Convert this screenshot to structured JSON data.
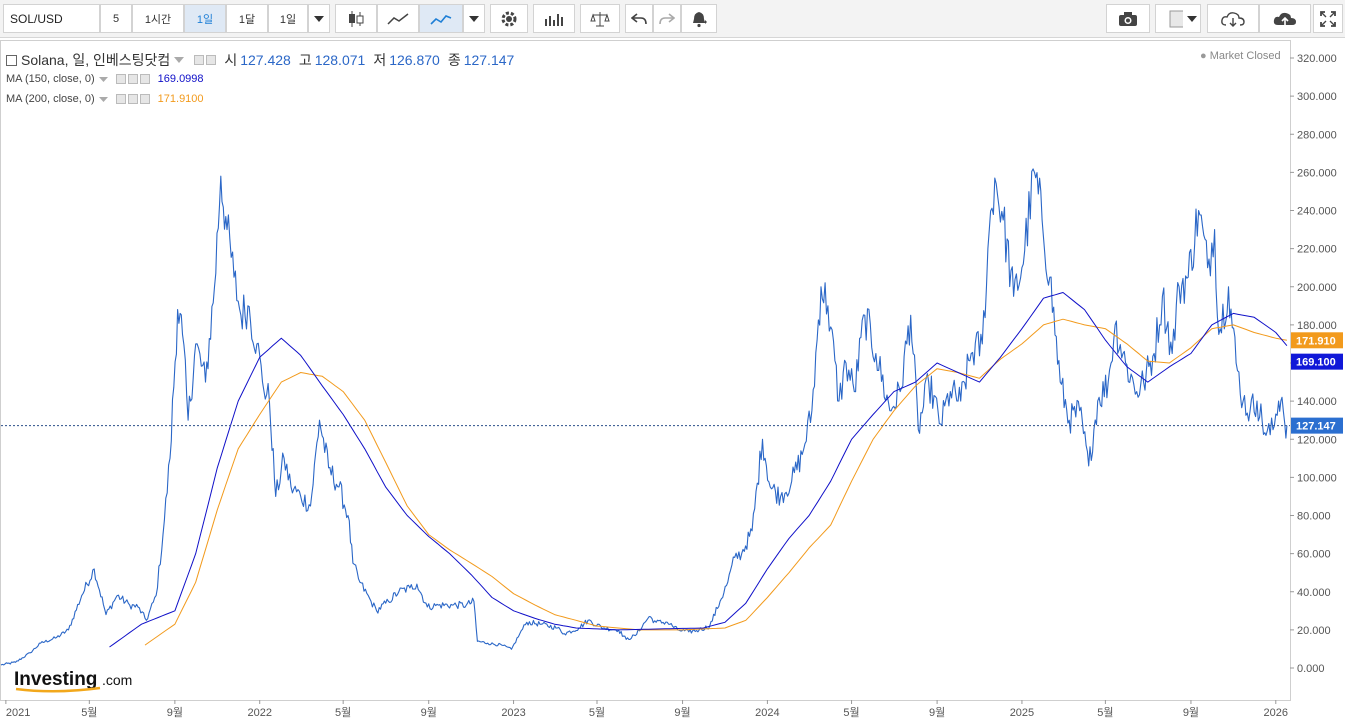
{
  "toolbar": {
    "symbol": "SOL/USD",
    "interval_value": "5",
    "btn_1h": "1시간",
    "btn_1d": "1일",
    "btn_1mo": "1달",
    "btn_period": "1일"
  },
  "legend": {
    "title": "Solana, 일, 인베스팅닷컴",
    "open_label": "시",
    "open": "127.428",
    "high_label": "고",
    "high": "128.071",
    "low_label": "저",
    "low": "126.870",
    "close_label": "종",
    "close": "127.147",
    "ma150_label": "MA (150, close, 0)",
    "ma150_value": "169.0998",
    "ma200_label": "MA (200, close, 0)",
    "ma200_value": "171.9100"
  },
  "status": {
    "market": "Market Closed"
  },
  "price_tags": {
    "ma200": "171.910",
    "ma150": "169.100",
    "last": "127.147"
  },
  "colors": {
    "price": "#2b67c7",
    "ma150": "#1010c8",
    "ma200": "#f29a1c",
    "tag_ma200": "#f29a1c",
    "tag_ma150": "#1018d8",
    "tag_last": "#2b6fd0"
  },
  "chart_data": {
    "type": "line",
    "ylim": [
      -10,
      330
    ],
    "yticks": [
      "0.000",
      "20.000",
      "40.000",
      "60.000",
      "80.000",
      "100.000",
      "120.000",
      "140.000",
      "160.000",
      "180.000",
      "200.000",
      "220.000",
      "240.000",
      "260.000",
      "280.000",
      "300.000",
      "320.000"
    ],
    "ytick_values": [
      0,
      20,
      40,
      60,
      80,
      100,
      120,
      140,
      160,
      180,
      200,
      220,
      240,
      260,
      280,
      300,
      320
    ],
    "xticks": [
      "2021",
      "5월",
      "9월",
      "2022",
      "5월",
      "9월",
      "2023",
      "5월",
      "9월",
      "2024",
      "5월",
      "9월",
      "2025",
      "5월",
      "9월",
      "2026"
    ],
    "xtick_dates": [
      "2021-01-01",
      "2021-05-01",
      "2021-09-01",
      "2022-01-01",
      "2022-05-01",
      "2022-09-01",
      "2023-01-01",
      "2023-05-01",
      "2023-09-01",
      "2024-01-01",
      "2024-05-01",
      "2024-09-01",
      "2025-01-01",
      "2025-05-01",
      "2025-09-01",
      "2026-01-01"
    ],
    "xlim": [
      "2020-12-25",
      "2026-01-20"
    ],
    "last_value": 127.147,
    "series": [
      {
        "name": "Solana",
        "points": [
          [
            "2020-12-25",
            1.6
          ],
          [
            "2021-01-15",
            3
          ],
          [
            "2021-02-05",
            8
          ],
          [
            "2021-02-20",
            13
          ],
          [
            "2021-03-15",
            16
          ],
          [
            "2021-04-01",
            20
          ],
          [
            "2021-04-20",
            38
          ],
          [
            "2021-05-08",
            52
          ],
          [
            "2021-05-25",
            28
          ],
          [
            "2021-06-10",
            38
          ],
          [
            "2021-06-28",
            33
          ],
          [
            "2021-07-10",
            32
          ],
          [
            "2021-07-22",
            25
          ],
          [
            "2021-08-05",
            38
          ],
          [
            "2021-08-15",
            70
          ],
          [
            "2021-08-25",
            110
          ],
          [
            "2021-09-05",
            188
          ],
          [
            "2021-09-12",
            175
          ],
          [
            "2021-09-20",
            130
          ],
          [
            "2021-10-01",
            170
          ],
          [
            "2021-10-15",
            150
          ],
          [
            "2021-10-28",
            200
          ],
          [
            "2021-11-06",
            258
          ],
          [
            "2021-11-15",
            230
          ],
          [
            "2021-11-25",
            205
          ],
          [
            "2021-12-05",
            185
          ],
          [
            "2021-12-15",
            190
          ],
          [
            "2021-12-28",
            170
          ],
          [
            "2022-01-05",
            150
          ],
          [
            "2022-01-15",
            140
          ],
          [
            "2022-01-24",
            90
          ],
          [
            "2022-02-05",
            110
          ],
          [
            "2022-02-15",
            95
          ],
          [
            "2022-03-01",
            90
          ],
          [
            "2022-03-15",
            85
          ],
          [
            "2022-03-28",
            130
          ],
          [
            "2022-04-10",
            105
          ],
          [
            "2022-04-25",
            95
          ],
          [
            "2022-05-08",
            80
          ],
          [
            "2022-05-15",
            55
          ],
          [
            "2022-05-25",
            45
          ],
          [
            "2022-06-10",
            35
          ],
          [
            "2022-06-18",
            30
          ],
          [
            "2022-07-05",
            35
          ],
          [
            "2022-07-20",
            40
          ],
          [
            "2022-08-05",
            42
          ],
          [
            "2022-08-15",
            44
          ],
          [
            "2022-08-30",
            32
          ],
          [
            "2022-09-15",
            33
          ],
          [
            "2022-10-05",
            33
          ],
          [
            "2022-10-25",
            33
          ],
          [
            "2022-11-05",
            35
          ],
          [
            "2022-11-10",
            14
          ],
          [
            "2022-11-25",
            13
          ],
          [
            "2022-12-15",
            12
          ],
          [
            "2022-12-29",
            9.8
          ],
          [
            "2023-01-10",
            18
          ],
          [
            "2023-01-20",
            24
          ],
          [
            "2023-02-10",
            23
          ],
          [
            "2023-03-05",
            21
          ],
          [
            "2023-03-15",
            18
          ],
          [
            "2023-04-05",
            21
          ],
          [
            "2023-04-18",
            25
          ],
          [
            "2023-05-10",
            21
          ],
          [
            "2023-06-01",
            20
          ],
          [
            "2023-06-12",
            15
          ],
          [
            "2023-06-25",
            17
          ],
          [
            "2023-07-15",
            27
          ],
          [
            "2023-07-25",
            24
          ],
          [
            "2023-08-10",
            24
          ],
          [
            "2023-08-25",
            20
          ],
          [
            "2023-09-10",
            19
          ],
          [
            "2023-09-25",
            20
          ],
          [
            "2023-10-10",
            22
          ],
          [
            "2023-10-25",
            35
          ],
          [
            "2023-11-05",
            45
          ],
          [
            "2023-11-15",
            58
          ],
          [
            "2023-11-25",
            60
          ],
          [
            "2023-12-10",
            72
          ],
          [
            "2023-12-25",
            120
          ],
          [
            "2024-01-05",
            95
          ],
          [
            "2024-01-20",
            90
          ],
          [
            "2024-02-05",
            98
          ],
          [
            "2024-02-20",
            112
          ],
          [
            "2024-03-05",
            135
          ],
          [
            "2024-03-18",
            200
          ],
          [
            "2024-03-28",
            190
          ],
          [
            "2024-04-13",
            140
          ],
          [
            "2024-04-23",
            160
          ],
          [
            "2024-05-05",
            145
          ],
          [
            "2024-05-20",
            185
          ],
          [
            "2024-06-05",
            165
          ],
          [
            "2024-06-25",
            135
          ],
          [
            "2024-07-10",
            145
          ],
          [
            "2024-07-25",
            185
          ],
          [
            "2024-08-05",
            125
          ],
          [
            "2024-08-20",
            150
          ],
          [
            "2024-09-06",
            128
          ],
          [
            "2024-09-20",
            145
          ],
          [
            "2024-10-05",
            140
          ],
          [
            "2024-10-20",
            165
          ],
          [
            "2024-11-05",
            170
          ],
          [
            "2024-11-15",
            230
          ],
          [
            "2024-11-23",
            257
          ],
          [
            "2024-12-05",
            235
          ],
          [
            "2024-12-20",
            195
          ],
          [
            "2025-01-01",
            210
          ],
          [
            "2025-01-19",
            260
          ],
          [
            "2025-01-30",
            235
          ],
          [
            "2025-02-10",
            205
          ],
          [
            "2025-02-25",
            150
          ],
          [
            "2025-03-10",
            130
          ],
          [
            "2025-03-25",
            135
          ],
          [
            "2025-04-07",
            106
          ],
          [
            "2025-04-20",
            140
          ],
          [
            "2025-05-05",
            150
          ],
          [
            "2025-05-15",
            180
          ],
          [
            "2025-05-30",
            160
          ],
          [
            "2025-06-15",
            145
          ],
          [
            "2025-06-25",
            150
          ],
          [
            "2025-07-10",
            165
          ],
          [
            "2025-07-22",
            195
          ],
          [
            "2025-08-05",
            165
          ],
          [
            "2025-08-15",
            200
          ],
          [
            "2025-08-28",
            205
          ],
          [
            "2025-09-12",
            240
          ],
          [
            "2025-09-25",
            210
          ],
          [
            "2025-10-05",
            230
          ],
          [
            "2025-10-11",
            175
          ],
          [
            "2025-10-25",
            200
          ],
          [
            "2025-11-05",
            160
          ],
          [
            "2025-11-15",
            140
          ],
          [
            "2025-11-25",
            135
          ],
          [
            "2025-12-05",
            140
          ],
          [
            "2025-12-18",
            122
          ],
          [
            "2025-12-28",
            125
          ],
          [
            "2026-01-05",
            140
          ],
          [
            "2026-01-10",
            142
          ],
          [
            "2026-01-14",
            128
          ],
          [
            "2026-01-17",
            127.147
          ]
        ]
      },
      {
        "name": "MA (150, close, 0)",
        "points": [
          [
            "2021-05-30",
            11
          ],
          [
            "2021-07-15",
            23
          ],
          [
            "2021-09-01",
            30
          ],
          [
            "2021-10-01",
            60
          ],
          [
            "2021-11-01",
            105
          ],
          [
            "2021-12-01",
            140
          ],
          [
            "2022-01-01",
            163
          ],
          [
            "2022-02-01",
            173
          ],
          [
            "2022-03-01",
            164
          ],
          [
            "2022-04-01",
            148
          ],
          [
            "2022-05-01",
            133
          ],
          [
            "2022-06-01",
            115
          ],
          [
            "2022-07-01",
            95
          ],
          [
            "2022-08-01",
            80
          ],
          [
            "2022-09-01",
            69
          ],
          [
            "2022-10-01",
            60
          ],
          [
            "2022-11-01",
            49
          ],
          [
            "2022-12-01",
            37
          ],
          [
            "2023-01-01",
            30
          ],
          [
            "2023-02-01",
            26
          ],
          [
            "2023-03-01",
            23
          ],
          [
            "2023-04-01",
            21
          ],
          [
            "2023-06-01",
            20
          ],
          [
            "2023-08-01",
            20.5
          ],
          [
            "2023-10-01",
            21
          ],
          [
            "2023-11-01",
            24
          ],
          [
            "2023-12-01",
            34
          ],
          [
            "2024-01-01",
            52
          ],
          [
            "2024-02-01",
            68
          ],
          [
            "2024-03-01",
            80
          ],
          [
            "2024-04-01",
            98
          ],
          [
            "2024-05-01",
            120
          ],
          [
            "2024-06-01",
            133
          ],
          [
            "2024-07-01",
            145
          ],
          [
            "2024-08-01",
            150
          ],
          [
            "2024-09-01",
            160
          ],
          [
            "2024-10-01",
            155
          ],
          [
            "2024-11-01",
            150
          ],
          [
            "2024-12-01",
            163
          ],
          [
            "2025-01-01",
            178
          ],
          [
            "2025-02-01",
            194
          ],
          [
            "2025-03-01",
            197
          ],
          [
            "2025-04-01",
            188
          ],
          [
            "2025-05-01",
            172
          ],
          [
            "2025-06-01",
            158
          ],
          [
            "2025-07-01",
            150
          ],
          [
            "2025-08-01",
            158
          ],
          [
            "2025-09-01",
            165
          ],
          [
            "2025-10-01",
            180
          ],
          [
            "2025-11-01",
            186
          ],
          [
            "2025-12-01",
            184
          ],
          [
            "2026-01-01",
            176
          ],
          [
            "2026-01-17",
            169.1
          ]
        ]
      },
      {
        "name": "MA (200, close, 0)",
        "points": [
          [
            "2021-07-20",
            12
          ],
          [
            "2021-09-01",
            23
          ],
          [
            "2021-10-01",
            45
          ],
          [
            "2021-11-01",
            83
          ],
          [
            "2021-12-01",
            115
          ],
          [
            "2022-01-01",
            133
          ],
          [
            "2022-02-01",
            150
          ],
          [
            "2022-03-01",
            155
          ],
          [
            "2022-04-01",
            153
          ],
          [
            "2022-05-01",
            145
          ],
          [
            "2022-06-01",
            130
          ],
          [
            "2022-07-01",
            108
          ],
          [
            "2022-08-01",
            85
          ],
          [
            "2022-09-01",
            70
          ],
          [
            "2022-10-01",
            62
          ],
          [
            "2022-11-01",
            55
          ],
          [
            "2022-12-01",
            48
          ],
          [
            "2023-01-01",
            39
          ],
          [
            "2023-02-01",
            33
          ],
          [
            "2023-03-01",
            28
          ],
          [
            "2023-04-01",
            25
          ],
          [
            "2023-05-01",
            22
          ],
          [
            "2023-07-01",
            20
          ],
          [
            "2023-09-01",
            20
          ],
          [
            "2023-11-01",
            21
          ],
          [
            "2023-12-01",
            25
          ],
          [
            "2024-01-01",
            37
          ],
          [
            "2024-02-01",
            50
          ],
          [
            "2024-03-01",
            63
          ],
          [
            "2024-04-01",
            75
          ],
          [
            "2024-05-01",
            98
          ],
          [
            "2024-06-01",
            120
          ],
          [
            "2024-07-01",
            135
          ],
          [
            "2024-08-01",
            148
          ],
          [
            "2024-09-01",
            157
          ],
          [
            "2024-10-01",
            155
          ],
          [
            "2024-11-01",
            152
          ],
          [
            "2024-12-01",
            162
          ],
          [
            "2025-01-01",
            170
          ],
          [
            "2025-02-01",
            180
          ],
          [
            "2025-03-01",
            183
          ],
          [
            "2025-04-01",
            180
          ],
          [
            "2025-05-01",
            178
          ],
          [
            "2025-06-01",
            170
          ],
          [
            "2025-07-01",
            161
          ],
          [
            "2025-08-01",
            160
          ],
          [
            "2025-09-01",
            168
          ],
          [
            "2025-10-01",
            178
          ],
          [
            "2025-11-01",
            180
          ],
          [
            "2025-12-01",
            176
          ],
          [
            "2026-01-01",
            173
          ],
          [
            "2026-01-17",
            171.91
          ]
        ]
      }
    ]
  }
}
